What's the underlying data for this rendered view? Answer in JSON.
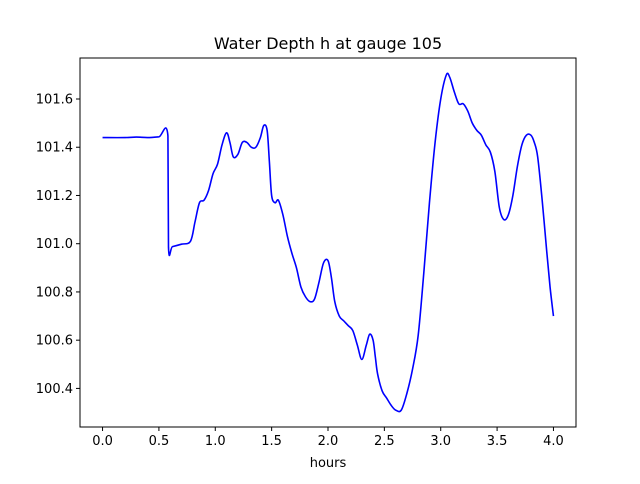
{
  "chart_data": {
    "type": "line",
    "title": "Water Depth h at gauge 105",
    "xlabel": "hours",
    "ylabel": "",
    "xlim": [
      -0.2,
      4.2
    ],
    "ylim": [
      100.24,
      101.77
    ],
    "xticks": [
      0.0,
      0.5,
      1.0,
      1.5,
      2.0,
      2.5,
      3.0,
      3.5,
      4.0
    ],
    "xtick_labels": [
      "0.0",
      "0.5",
      "1.0",
      "1.5",
      "2.0",
      "2.5",
      "3.0",
      "3.5",
      "4.0"
    ],
    "yticks": [
      100.4,
      100.6,
      100.8,
      101.0,
      101.2,
      101.4,
      101.6
    ],
    "ytick_labels": [
      "100.4",
      "100.6",
      "100.8",
      "101.0",
      "101.2",
      "101.4",
      "101.6"
    ],
    "grid": false,
    "legend": "none",
    "series": [
      {
        "color": "#0000ff",
        "x": [
          0.0,
          0.2,
          0.3,
          0.4,
          0.5,
          0.58,
          0.585,
          0.62,
          0.7,
          0.78,
          0.82,
          0.86,
          0.9,
          0.94,
          0.98,
          1.02,
          1.06,
          1.1,
          1.13,
          1.16,
          1.2,
          1.24,
          1.28,
          1.32,
          1.36,
          1.4,
          1.43,
          1.46,
          1.48,
          1.5,
          1.53,
          1.56,
          1.6,
          1.64,
          1.68,
          1.72,
          1.76,
          1.8,
          1.84,
          1.88,
          1.92,
          1.96,
          2.0,
          2.03,
          2.06,
          2.1,
          2.14,
          2.18,
          2.22,
          2.26,
          2.3,
          2.34,
          2.37,
          2.4,
          2.42,
          2.44,
          2.48,
          2.52,
          2.56,
          2.6,
          2.65,
          2.7,
          2.75,
          2.8,
          2.85,
          2.9,
          2.95,
          3.0,
          3.05,
          3.08,
          3.12,
          3.16,
          3.2,
          3.24,
          3.28,
          3.32,
          3.36,
          3.4,
          3.44,
          3.48,
          3.52,
          3.56,
          3.6,
          3.64,
          3.68,
          3.72,
          3.76,
          3.8,
          3.83,
          3.86,
          3.9,
          3.94,
          3.97,
          4.0
        ],
        "y": [
          101.44,
          101.44,
          101.442,
          101.44,
          101.443,
          101.447,
          100.985,
          100.988,
          100.998,
          101.01,
          101.09,
          101.17,
          101.18,
          101.22,
          101.29,
          101.33,
          101.41,
          101.46,
          101.42,
          101.36,
          101.37,
          101.42,
          101.42,
          101.4,
          101.4,
          101.44,
          101.49,
          101.47,
          101.34,
          101.2,
          101.17,
          101.18,
          101.12,
          101.03,
          100.96,
          100.9,
          100.82,
          100.78,
          100.76,
          100.77,
          100.84,
          100.92,
          100.93,
          100.86,
          100.76,
          100.7,
          100.68,
          100.66,
          100.64,
          100.58,
          100.52,
          100.58,
          100.625,
          100.6,
          100.53,
          100.46,
          100.39,
          100.36,
          100.33,
          100.31,
          100.31,
          100.38,
          100.48,
          100.62,
          100.88,
          101.17,
          101.42,
          101.6,
          101.7,
          101.69,
          101.63,
          101.58,
          101.58,
          101.55,
          101.5,
          101.47,
          101.45,
          101.41,
          101.38,
          101.3,
          101.15,
          101.1,
          101.12,
          101.2,
          101.32,
          101.41,
          101.45,
          101.45,
          101.42,
          101.36,
          101.18,
          100.97,
          100.82,
          100.7
        ]
      }
    ]
  }
}
